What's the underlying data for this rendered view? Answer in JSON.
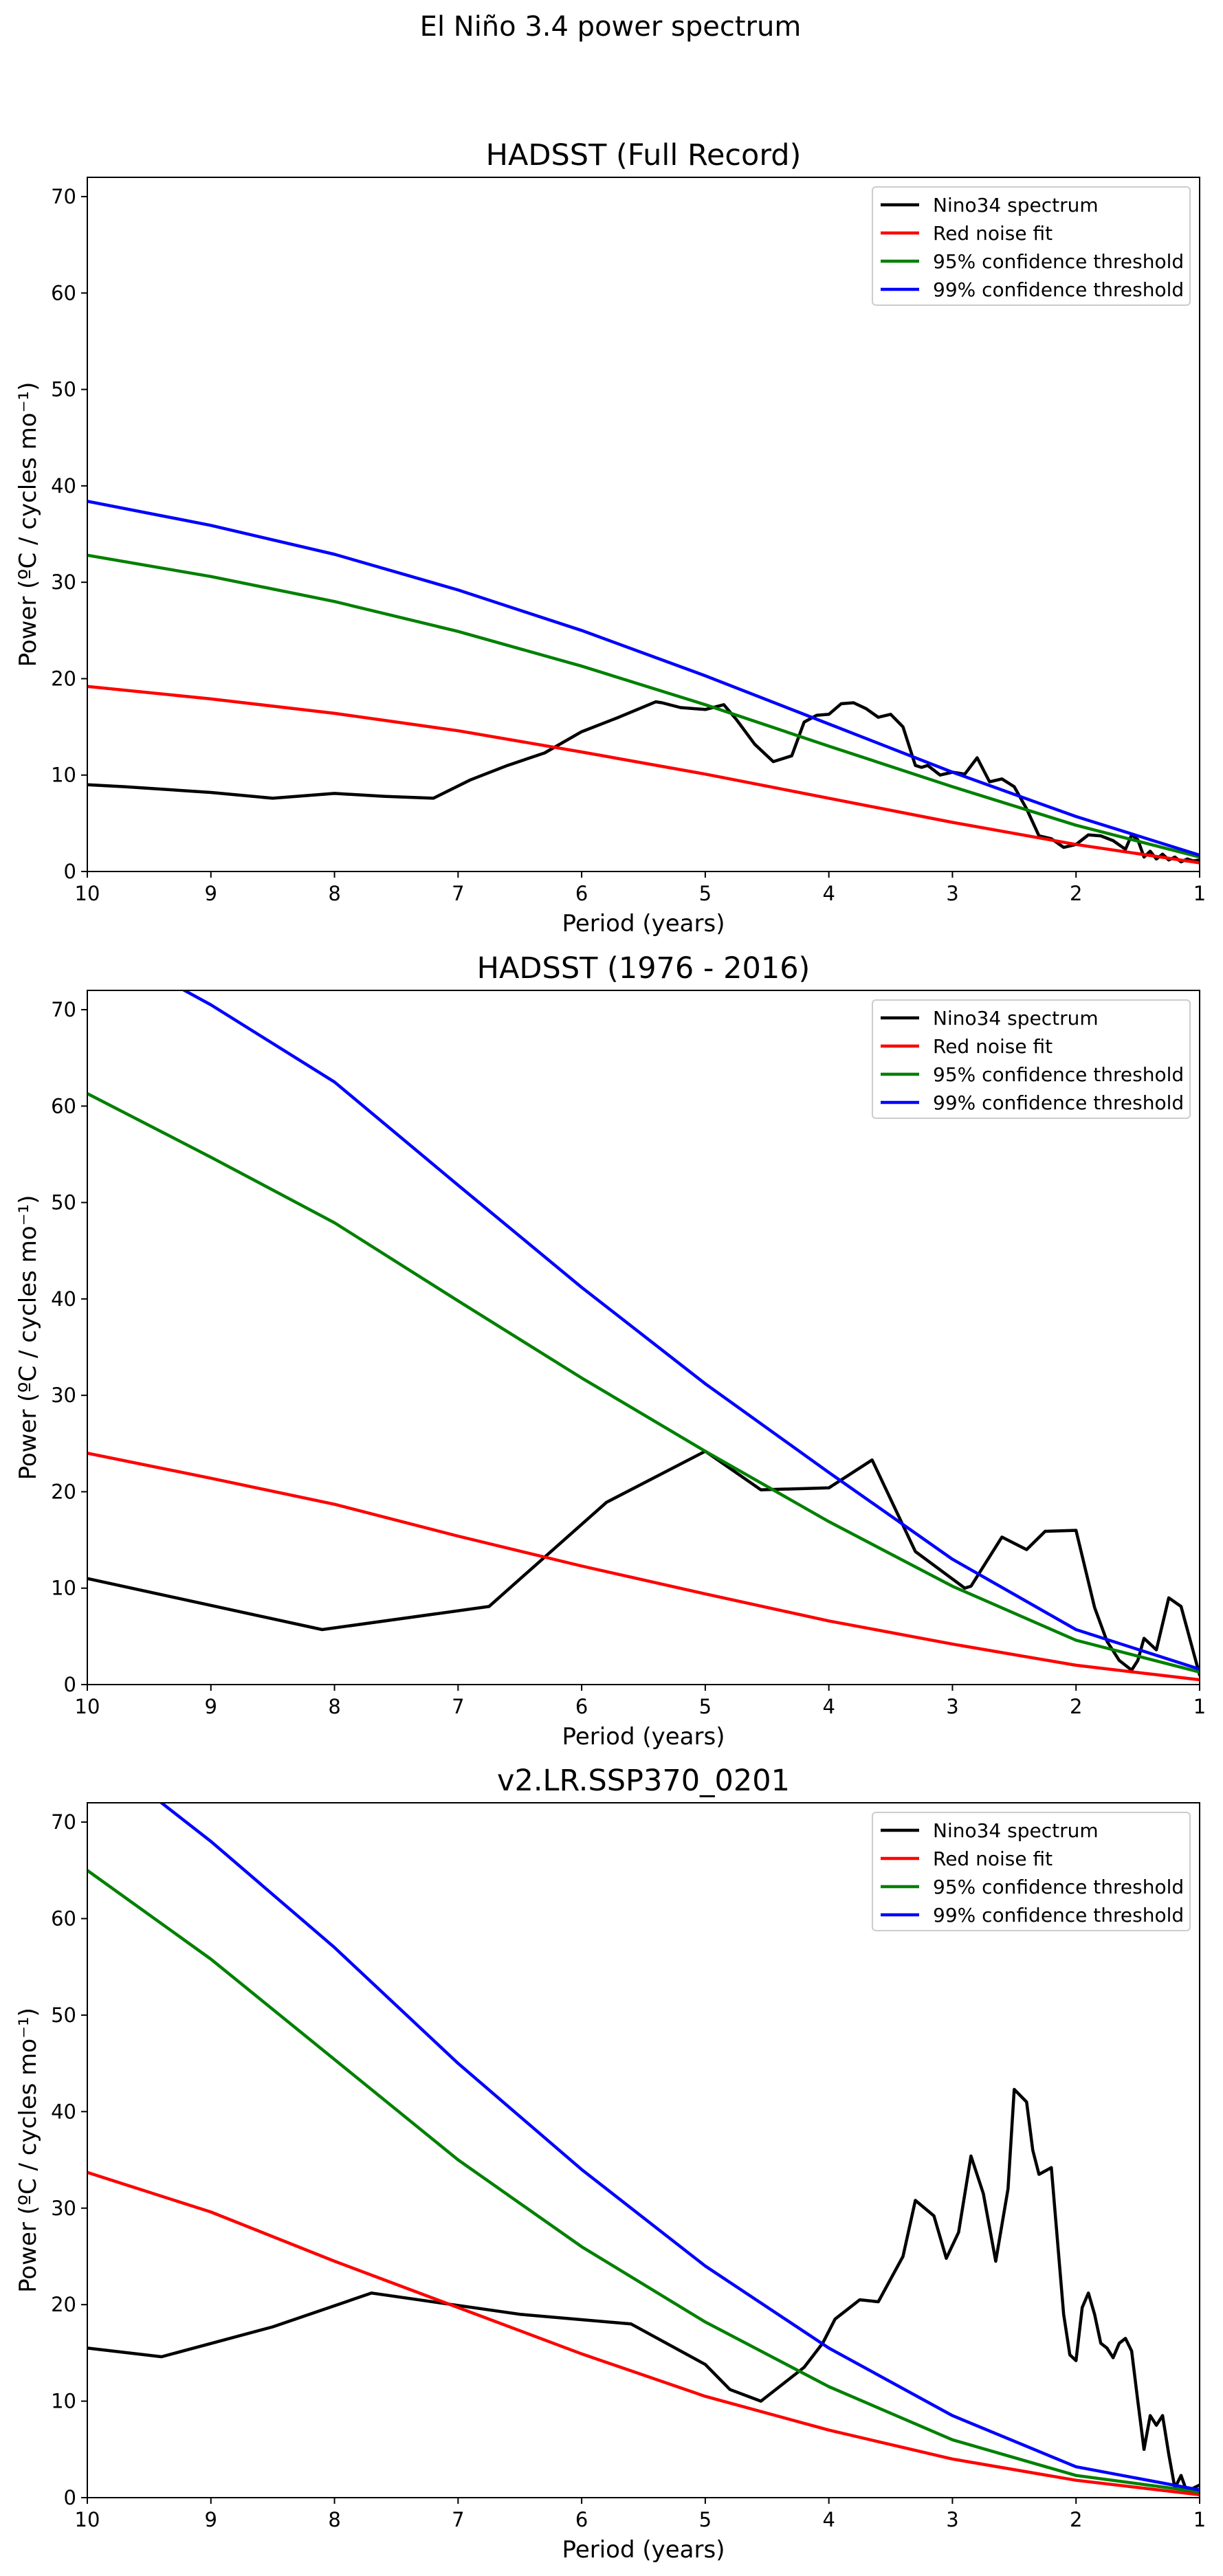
{
  "figure": {
    "suptitle": "El Niño 3.4 power spectrum"
  },
  "colors": {
    "spectrum": "#000000",
    "red_noise": "#ff0000",
    "conf95": "#008000",
    "conf99": "#0000ff",
    "axes": "#000000"
  },
  "chart_data": [
    {
      "type": "line",
      "title": "HADSST (Full Record)",
      "xlabel": "Period (years)",
      "ylabel": "Power (ºC / cycles mo⁻¹)",
      "xlim": [
        10,
        1
      ],
      "ylim": [
        0,
        72
      ],
      "xticks": [
        10,
        9,
        8,
        7,
        6,
        5,
        4,
        3,
        2,
        1
      ],
      "yticks": [
        0,
        10,
        20,
        30,
        40,
        50,
        60,
        70
      ],
      "grid": false,
      "legend_position": "top-right",
      "series": [
        {
          "name": "Nino34 spectrum",
          "color": "#000000",
          "x": [
            10,
            9.7,
            9,
            8.5,
            8,
            7.6,
            7.2,
            6.9,
            6.6,
            6.3,
            6.0,
            5.7,
            5.4,
            5.35,
            5.2,
            5.0,
            4.85,
            4.75,
            4.6,
            4.45,
            4.3,
            4.2,
            4.1,
            4.0,
            3.9,
            3.8,
            3.7,
            3.6,
            3.5,
            3.4,
            3.3,
            3.25,
            3.2,
            3.1,
            3.0,
            2.9,
            2.8,
            2.7,
            2.6,
            2.5,
            2.4,
            2.3,
            2.2,
            2.1,
            2.0,
            1.9,
            1.8,
            1.7,
            1.6,
            1.55,
            1.5,
            1.45,
            1.4,
            1.35,
            1.3,
            1.25,
            1.2,
            1.15,
            1.1,
            1.05,
            1.0
          ],
          "y": [
            9.0,
            8.8,
            8.2,
            7.6,
            8.1,
            7.8,
            7.6,
            9.5,
            11.0,
            12.3,
            14.5,
            16.0,
            17.6,
            17.5,
            17.0,
            16.8,
            17.3,
            15.8,
            13.2,
            11.4,
            12.0,
            15.5,
            16.2,
            16.3,
            17.4,
            17.5,
            16.9,
            16.0,
            16.3,
            15.0,
            11.0,
            10.8,
            11.0,
            10.0,
            10.3,
            10.1,
            11.8,
            9.3,
            9.6,
            8.8,
            6.5,
            3.7,
            3.4,
            2.5,
            2.8,
            3.8,
            3.7,
            3.2,
            2.3,
            3.8,
            3.3,
            1.5,
            2.1,
            1.3,
            1.8,
            1.2,
            1.5,
            1.0,
            1.3,
            1.1,
            1.2
          ]
        },
        {
          "name": "Red noise fit",
          "color": "#ff0000",
          "x": [
            10,
            9,
            8,
            7,
            6,
            5,
            4,
            3,
            2,
            1
          ],
          "y": [
            19.2,
            17.9,
            16.4,
            14.6,
            12.4,
            10.1,
            7.6,
            5.1,
            2.8,
            0.9
          ]
        },
        {
          "name": "95% confidence threshold",
          "color": "#008000",
          "x": [
            10,
            9,
            8,
            7,
            6,
            5,
            4,
            3,
            2,
            1
          ],
          "y": [
            32.8,
            30.6,
            28.0,
            24.9,
            21.3,
            17.3,
            13.0,
            8.8,
            4.8,
            1.5
          ]
        },
        {
          "name": "99% confidence threshold",
          "color": "#0000ff",
          "x": [
            10,
            9,
            8,
            7,
            6,
            5,
            4,
            3,
            2,
            1
          ],
          "y": [
            38.4,
            35.9,
            32.9,
            29.2,
            25.0,
            20.3,
            15.3,
            10.3,
            5.7,
            1.7
          ]
        }
      ]
    },
    {
      "type": "line",
      "title": "HADSST (1976 - 2016)",
      "xlabel": "Period (years)",
      "ylabel": "Power (ºC / cycles mo⁻¹)",
      "xlim": [
        10,
        1
      ],
      "ylim": [
        0,
        72
      ],
      "xticks": [
        10,
        9,
        8,
        7,
        6,
        5,
        4,
        3,
        2,
        1
      ],
      "yticks": [
        0,
        10,
        20,
        30,
        40,
        50,
        60,
        70
      ],
      "grid": false,
      "legend_position": "top-right",
      "series": [
        {
          "name": "Nino34 spectrum",
          "color": "#000000",
          "x": [
            10,
            8.1,
            6.75,
            5.8,
            5.0,
            4.55,
            4.0,
            3.65,
            3.3,
            2.9,
            2.85,
            2.6,
            2.4,
            2.25,
            2.0,
            1.85,
            1.75,
            1.65,
            1.55,
            1.5,
            1.45,
            1.35,
            1.25,
            1.15,
            1.0
          ],
          "y": [
            11.0,
            5.7,
            8.1,
            18.9,
            24.2,
            20.2,
            20.4,
            23.3,
            13.8,
            10.0,
            10.2,
            15.3,
            14.0,
            15.9,
            16.0,
            8.0,
            4.5,
            2.5,
            1.5,
            2.5,
            4.8,
            3.6,
            9.0,
            8.1,
            1.0
          ]
        },
        {
          "name": "Red noise fit",
          "color": "#ff0000",
          "x": [
            10,
            9,
            8,
            7,
            6,
            5,
            4,
            3,
            2,
            1
          ],
          "y": [
            24.0,
            21.4,
            18.7,
            15.4,
            12.3,
            9.4,
            6.6,
            4.2,
            2.0,
            0.5
          ]
        },
        {
          "name": "95% confidence threshold",
          "color": "#008000",
          "x": [
            10,
            9,
            8,
            7,
            6,
            5,
            4,
            3,
            2,
            1
          ],
          "y": [
            61.3,
            54.7,
            47.9,
            39.8,
            31.8,
            24.2,
            16.9,
            10.2,
            4.6,
            1.3
          ]
        },
        {
          "name": "99% confidence threshold",
          "color": "#0000ff",
          "x": [
            10,
            9.5,
            9,
            8,
            7,
            6,
            5,
            4,
            3,
            2,
            1
          ],
          "y": [
            78.0,
            74.0,
            70.5,
            62.5,
            51.8,
            41.2,
            31.2,
            22.0,
            13.0,
            5.7,
            1.6
          ]
        }
      ]
    },
    {
      "type": "line",
      "title": "v2.LR.SSP370_0201",
      "xlabel": "Period (years)",
      "ylabel": "Power (ºC / cycles mo⁻¹)",
      "xlim": [
        10,
        1
      ],
      "ylim": [
        0,
        72
      ],
      "xticks": [
        10,
        9,
        8,
        7,
        6,
        5,
        4,
        3,
        2,
        1
      ],
      "yticks": [
        0,
        10,
        20,
        30,
        40,
        50,
        60,
        70
      ],
      "grid": false,
      "legend_position": "top-right",
      "series": [
        {
          "name": "Nino34 spectrum",
          "color": "#000000",
          "x": [
            10,
            9.4,
            8.5,
            7.7,
            6.5,
            5.6,
            5.0,
            4.8,
            4.55,
            4.4,
            4.2,
            4.05,
            3.95,
            3.75,
            3.6,
            3.4,
            3.3,
            3.15,
            3.05,
            2.95,
            2.85,
            2.75,
            2.65,
            2.55,
            2.5,
            2.4,
            2.35,
            2.3,
            2.2,
            2.1,
            2.05,
            2.0,
            1.95,
            1.9,
            1.85,
            1.8,
            1.75,
            1.7,
            1.65,
            1.6,
            1.55,
            1.5,
            1.45,
            1.4,
            1.35,
            1.3,
            1.25,
            1.2,
            1.15,
            1.1,
            1.05,
            1.0
          ],
          "y": [
            15.5,
            14.6,
            17.7,
            21.2,
            19.0,
            18.0,
            13.8,
            11.2,
            10.0,
            11.5,
            13.5,
            16.0,
            18.5,
            20.5,
            20.3,
            25.0,
            30.8,
            29.2,
            24.8,
            27.5,
            35.4,
            31.5,
            24.5,
            32.0,
            42.3,
            41.0,
            36.0,
            33.5,
            34.2,
            19.0,
            14.8,
            14.2,
            19.7,
            21.2,
            19.0,
            16.0,
            15.5,
            14.5,
            16.0,
            16.5,
            15.2,
            10.0,
            5.0,
            8.5,
            7.5,
            8.5,
            4.5,
            1.0,
            2.3,
            0.5,
            1.0,
            1.3
          ]
        },
        {
          "name": "Red noise fit",
          "color": "#ff0000",
          "x": [
            10,
            9,
            8,
            7,
            6,
            5,
            4,
            3,
            2,
            1
          ],
          "y": [
            33.7,
            29.6,
            24.5,
            19.7,
            14.9,
            10.5,
            7.0,
            4.0,
            1.8,
            0.3
          ]
        },
        {
          "name": "95% confidence threshold",
          "color": "#008000",
          "x": [
            10,
            9,
            8,
            7,
            6,
            5,
            4,
            3,
            2,
            1
          ],
          "y": [
            65.0,
            55.8,
            45.4,
            35.0,
            26.0,
            18.2,
            11.5,
            6.0,
            2.3,
            0.6
          ]
        },
        {
          "name": "99% confidence threshold",
          "color": "#0000ff",
          "x": [
            10,
            9.5,
            9,
            8,
            7,
            6,
            5,
            4,
            3,
            2,
            1
          ],
          "y": [
            78.5,
            73.0,
            68.0,
            57.0,
            45.0,
            34.0,
            24.0,
            15.5,
            8.5,
            3.2,
            0.8
          ]
        }
      ]
    }
  ]
}
